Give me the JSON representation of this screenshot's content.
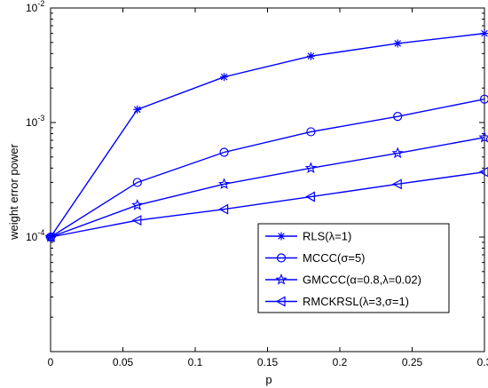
{
  "chart_data": {
    "type": "line",
    "title": "",
    "xlabel": "p",
    "ylabel": "weight error power",
    "xlim": [
      0,
      0.3
    ],
    "ylim": [
      1e-05,
      0.01
    ],
    "yscale": "log",
    "grid": false,
    "legend_position": "lower-right",
    "x_ticks": [
      "0",
      "0.05",
      "0.1",
      "0.15",
      "0.2",
      "0.25",
      "0.3"
    ],
    "y_ticks": [
      {
        "base": "10",
        "exp": "-4",
        "value": 0.0001
      },
      {
        "base": "10",
        "exp": "-3",
        "value": 0.001
      },
      {
        "base": "10",
        "exp": "-2",
        "value": 0.01
      }
    ],
    "x": [
      0,
      0.06,
      0.12,
      0.18,
      0.24,
      0.3
    ],
    "series": [
      {
        "name": "RLS(λ=1)",
        "marker": "asterisk",
        "values": [
          0.0001,
          0.0013,
          0.0025,
          0.0038,
          0.0049,
          0.006
        ]
      },
      {
        "name": "MCCC(σ=5)",
        "marker": "circle",
        "values": [
          0.0001,
          0.0003,
          0.00055,
          0.00083,
          0.00113,
          0.0016
        ]
      },
      {
        "name": "GMCCC(α=0.8,λ=0.02)",
        "marker": "star",
        "values": [
          0.0001,
          0.00019,
          0.00029,
          0.0004,
          0.00054,
          0.00074
        ]
      },
      {
        "name": "RMCKRSL(λ=3,σ=1)",
        "marker": "triangle-left",
        "values": [
          0.0001,
          0.00014,
          0.000175,
          0.000225,
          0.00029,
          0.00037
        ]
      }
    ],
    "colors": {
      "line": "#0000ff",
      "axis": "#000000"
    }
  }
}
